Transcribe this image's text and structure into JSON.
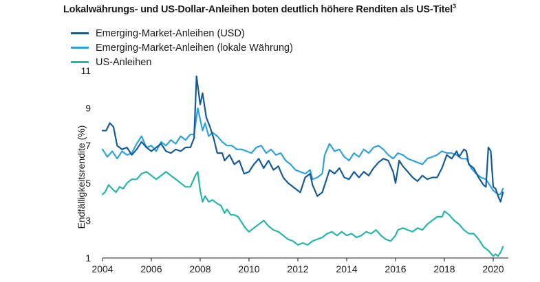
{
  "chart_data": {
    "type": "line",
    "title": "Lokalwährungs- und US-Dollar-Anleihen boten deutlich höhere Renditen als US-Titel",
    "title_sup": "3",
    "ylabel": "Endfälligkeitsrendite (%)",
    "xlabel": "",
    "xlim": [
      2004,
      2020.4
    ],
    "ylim": [
      1,
      11
    ],
    "x_ticks": [
      "2004",
      "2006",
      "2008",
      "2010",
      "2012",
      "2014",
      "2016",
      "2018",
      "2020"
    ],
    "y_ticks": [
      "1",
      "3",
      "5",
      "7",
      "9",
      "11"
    ],
    "grid": false,
    "legend_position": "top-left",
    "series": [
      {
        "name": "Emerging-Market-Anleihen (USD)",
        "color": "#145a97",
        "points": [
          [
            2004.0,
            7.8
          ],
          [
            2004.15,
            7.8
          ],
          [
            2004.3,
            8.2
          ],
          [
            2004.45,
            8.0
          ],
          [
            2004.6,
            7.0
          ],
          [
            2004.8,
            6.8
          ],
          [
            2005.0,
            6.9
          ],
          [
            2005.2,
            6.5
          ],
          [
            2005.4,
            6.8
          ],
          [
            2005.6,
            7.2
          ],
          [
            2005.8,
            6.9
          ],
          [
            2006.0,
            6.7
          ],
          [
            2006.2,
            6.9
          ],
          [
            2006.4,
            7.1
          ],
          [
            2006.6,
            6.7
          ],
          [
            2006.8,
            6.6
          ],
          [
            2007.0,
            6.8
          ],
          [
            2007.2,
            6.7
          ],
          [
            2007.4,
            6.9
          ],
          [
            2007.6,
            6.9
          ],
          [
            2007.75,
            7.4
          ],
          [
            2007.85,
            10.7
          ],
          [
            2008.0,
            9.2
          ],
          [
            2008.1,
            9.8
          ],
          [
            2008.25,
            8.5
          ],
          [
            2008.4,
            8.0
          ],
          [
            2008.55,
            7.4
          ],
          [
            2008.7,
            6.6
          ],
          [
            2008.9,
            6.6
          ],
          [
            2009.0,
            6.2
          ],
          [
            2009.2,
            6.5
          ],
          [
            2009.4,
            6.0
          ],
          [
            2009.6,
            6.2
          ],
          [
            2009.8,
            5.5
          ],
          [
            2010.0,
            5.6
          ],
          [
            2010.2,
            6.0
          ],
          [
            2010.4,
            6.3
          ],
          [
            2010.6,
            5.8
          ],
          [
            2010.8,
            6.2
          ],
          [
            2011.0,
            5.7
          ],
          [
            2011.2,
            5.9
          ],
          [
            2011.4,
            5.3
          ],
          [
            2011.6,
            5.0
          ],
          [
            2011.8,
            4.8
          ],
          [
            2012.0,
            4.6
          ],
          [
            2012.1,
            4.5
          ],
          [
            2012.3,
            5.3
          ],
          [
            2012.5,
            5.5
          ],
          [
            2012.6,
            4.9
          ],
          [
            2012.8,
            4.3
          ],
          [
            2013.0,
            4.5
          ],
          [
            2013.3,
            5.7
          ],
          [
            2013.5,
            5.5
          ],
          [
            2013.7,
            5.8
          ],
          [
            2013.9,
            5.3
          ],
          [
            2014.1,
            5.2
          ],
          [
            2014.3,
            5.6
          ],
          [
            2014.5,
            5.3
          ],
          [
            2014.7,
            5.6
          ],
          [
            2014.9,
            5.4
          ],
          [
            2015.1,
            5.8
          ],
          [
            2015.3,
            6.1
          ],
          [
            2015.5,
            6.3
          ],
          [
            2015.7,
            6.2
          ],
          [
            2015.9,
            5.6
          ],
          [
            2016.0,
            5.0
          ],
          [
            2016.15,
            6.2
          ],
          [
            2016.3,
            5.9
          ],
          [
            2016.5,
            5.6
          ],
          [
            2016.7,
            5.3
          ],
          [
            2016.9,
            5.1
          ],
          [
            2017.1,
            5.4
          ],
          [
            2017.3,
            5.2
          ],
          [
            2017.5,
            5.3
          ],
          [
            2017.7,
            5.3
          ],
          [
            2017.9,
            5.8
          ],
          [
            2018.1,
            6.5
          ],
          [
            2018.3,
            6.3
          ],
          [
            2018.5,
            6.7
          ],
          [
            2018.6,
            6.4
          ],
          [
            2018.8,
            6.8
          ],
          [
            2018.9,
            6.7
          ],
          [
            2019.0,
            6.0
          ],
          [
            2019.2,
            5.8
          ],
          [
            2019.4,
            5.3
          ],
          [
            2019.6,
            4.9
          ],
          [
            2019.7,
            4.8
          ],
          [
            2019.8,
            6.9
          ],
          [
            2019.9,
            6.7
          ],
          [
            2020.0,
            4.8
          ],
          [
            2020.1,
            4.7
          ],
          [
            2020.2,
            4.3
          ],
          [
            2020.3,
            4.0
          ],
          [
            2020.4,
            4.5
          ]
        ]
      },
      {
        "name": "Emerging-Market-Anleihen (lokale Währung)",
        "color": "#2da1dd",
        "points": [
          [
            2004.0,
            6.8
          ],
          [
            2004.2,
            6.4
          ],
          [
            2004.4,
            6.7
          ],
          [
            2004.6,
            6.3
          ],
          [
            2004.8,
            6.7
          ],
          [
            2005.0,
            6.5
          ],
          [
            2005.2,
            6.6
          ],
          [
            2005.4,
            7.1
          ],
          [
            2005.6,
            7.5
          ],
          [
            2005.8,
            6.9
          ],
          [
            2006.0,
            7.0
          ],
          [
            2006.2,
            6.7
          ],
          [
            2006.4,
            7.2
          ],
          [
            2006.6,
            7.0
          ],
          [
            2006.8,
            7.3
          ],
          [
            2007.0,
            7.1
          ],
          [
            2007.2,
            7.5
          ],
          [
            2007.4,
            7.3
          ],
          [
            2007.6,
            7.6
          ],
          [
            2007.75,
            7.6
          ],
          [
            2007.9,
            9.0
          ],
          [
            2008.1,
            7.8
          ],
          [
            2008.2,
            8.2
          ],
          [
            2008.35,
            7.5
          ],
          [
            2008.5,
            7.7
          ],
          [
            2008.7,
            7.5
          ],
          [
            2008.9,
            7.2
          ],
          [
            2009.1,
            7.0
          ],
          [
            2009.3,
            7.0
          ],
          [
            2009.5,
            6.8
          ],
          [
            2009.7,
            6.8
          ],
          [
            2009.9,
            6.7
          ],
          [
            2010.1,
            6.6
          ],
          [
            2010.3,
            6.9
          ],
          [
            2010.5,
            7.0
          ],
          [
            2010.7,
            6.6
          ],
          [
            2010.9,
            6.8
          ],
          [
            2011.1,
            6.5
          ],
          [
            2011.3,
            6.6
          ],
          [
            2011.5,
            6.2
          ],
          [
            2011.7,
            6.0
          ],
          [
            2011.9,
            5.7
          ],
          [
            2012.1,
            5.6
          ],
          [
            2012.3,
            5.5
          ],
          [
            2012.5,
            5.7
          ],
          [
            2012.6,
            5.2
          ],
          [
            2012.8,
            5.3
          ],
          [
            2013.0,
            5.5
          ],
          [
            2013.1,
            6.5
          ],
          [
            2013.3,
            7.1
          ],
          [
            2013.5,
            6.7
          ],
          [
            2013.7,
            6.8
          ],
          [
            2013.9,
            6.4
          ],
          [
            2014.1,
            6.2
          ],
          [
            2014.3,
            6.6
          ],
          [
            2014.5,
            6.4
          ],
          [
            2014.7,
            6.8
          ],
          [
            2014.9,
            6.6
          ],
          [
            2015.1,
            6.9
          ],
          [
            2015.3,
            7.0
          ],
          [
            2015.5,
            6.8
          ],
          [
            2015.7,
            6.5
          ],
          [
            2015.9,
            6.3
          ],
          [
            2016.1,
            6.6
          ],
          [
            2016.3,
            6.5
          ],
          [
            2016.5,
            6.3
          ],
          [
            2016.7,
            6.2
          ],
          [
            2016.9,
            6.1
          ],
          [
            2017.1,
            6.0
          ],
          [
            2017.3,
            6.3
          ],
          [
            2017.5,
            6.4
          ],
          [
            2017.7,
            6.5
          ],
          [
            2017.9,
            6.7
          ],
          [
            2018.1,
            6.6
          ],
          [
            2018.3,
            6.6
          ],
          [
            2018.5,
            6.5
          ],
          [
            2018.7,
            6.3
          ],
          [
            2018.9,
            6.3
          ],
          [
            2019.1,
            5.8
          ],
          [
            2019.3,
            5.5
          ],
          [
            2019.5,
            5.3
          ],
          [
            2019.7,
            5.2
          ],
          [
            2019.9,
            4.8
          ],
          [
            2020.0,
            4.6
          ],
          [
            2020.1,
            4.5
          ],
          [
            2020.2,
            4.4
          ],
          [
            2020.3,
            4.4
          ],
          [
            2020.4,
            4.7
          ]
        ]
      },
      {
        "name": "US-Anleihen",
        "color": "#27b5a6",
        "points": [
          [
            2004.0,
            4.4
          ],
          [
            2004.1,
            4.5
          ],
          [
            2004.25,
            4.9
          ],
          [
            2004.4,
            4.7
          ],
          [
            2004.55,
            4.5
          ],
          [
            2004.7,
            4.8
          ],
          [
            2004.85,
            4.7
          ],
          [
            2005.0,
            5.0
          ],
          [
            2005.2,
            5.2
          ],
          [
            2005.4,
            5.2
          ],
          [
            2005.6,
            5.5
          ],
          [
            2005.8,
            5.6
          ],
          [
            2006.0,
            5.4
          ],
          [
            2006.2,
            5.2
          ],
          [
            2006.4,
            5.4
          ],
          [
            2006.6,
            5.6
          ],
          [
            2006.8,
            5.4
          ],
          [
            2007.0,
            5.2
          ],
          [
            2007.2,
            5.0
          ],
          [
            2007.4,
            4.8
          ],
          [
            2007.6,
            4.8
          ],
          [
            2007.8,
            5.4
          ],
          [
            2007.9,
            5.6
          ],
          [
            2008.0,
            4.6
          ],
          [
            2008.1,
            4.0
          ],
          [
            2008.2,
            4.3
          ],
          [
            2008.35,
            4.0
          ],
          [
            2008.5,
            4.1
          ],
          [
            2008.7,
            3.9
          ],
          [
            2008.85,
            3.8
          ],
          [
            2009.0,
            3.4
          ],
          [
            2009.1,
            3.6
          ],
          [
            2009.25,
            3.3
          ],
          [
            2009.4,
            3.3
          ],
          [
            2009.55,
            3.2
          ],
          [
            2009.7,
            2.9
          ],
          [
            2009.85,
            2.6
          ],
          [
            2010.0,
            2.4
          ],
          [
            2010.2,
            2.6
          ],
          [
            2010.4,
            2.8
          ],
          [
            2010.6,
            3.0
          ],
          [
            2010.8,
            2.7
          ],
          [
            2011.0,
            2.5
          ],
          [
            2011.2,
            2.4
          ],
          [
            2011.4,
            2.2
          ],
          [
            2011.6,
            2.0
          ],
          [
            2011.8,
            1.9
          ],
          [
            2012.0,
            1.7
          ],
          [
            2012.2,
            1.8
          ],
          [
            2012.4,
            1.7
          ],
          [
            2012.6,
            1.9
          ],
          [
            2012.8,
            2.0
          ],
          [
            2013.0,
            2.1
          ],
          [
            2013.2,
            2.3
          ],
          [
            2013.4,
            2.4
          ],
          [
            2013.6,
            2.2
          ],
          [
            2013.8,
            2.4
          ],
          [
            2014.0,
            2.2
          ],
          [
            2014.2,
            2.3
          ],
          [
            2014.4,
            2.1
          ],
          [
            2014.6,
            2.2
          ],
          [
            2014.8,
            2.4
          ],
          [
            2015.0,
            2.3
          ],
          [
            2015.2,
            2.5
          ],
          [
            2015.4,
            2.2
          ],
          [
            2015.6,
            2.0
          ],
          [
            2015.8,
            1.9
          ],
          [
            2016.0,
            2.2
          ],
          [
            2016.1,
            2.5
          ],
          [
            2016.3,
            2.6
          ],
          [
            2016.5,
            2.5
          ],
          [
            2016.7,
            2.4
          ],
          [
            2016.9,
            2.6
          ],
          [
            2017.1,
            2.5
          ],
          [
            2017.3,
            2.8
          ],
          [
            2017.5,
            3.0
          ],
          [
            2017.7,
            3.2
          ],
          [
            2017.9,
            3.2
          ],
          [
            2018.0,
            3.5
          ],
          [
            2018.2,
            3.3
          ],
          [
            2018.4,
            3.0
          ],
          [
            2018.6,
            2.8
          ],
          [
            2018.8,
            2.5
          ],
          [
            2019.0,
            2.3
          ],
          [
            2019.2,
            2.3
          ],
          [
            2019.4,
            2.0
          ],
          [
            2019.6,
            1.6
          ],
          [
            2019.8,
            1.4
          ],
          [
            2020.0,
            1.1
          ],
          [
            2020.1,
            1.2
          ],
          [
            2020.2,
            1.1
          ],
          [
            2020.3,
            1.3
          ],
          [
            2020.4,
            1.6
          ]
        ]
      }
    ]
  }
}
